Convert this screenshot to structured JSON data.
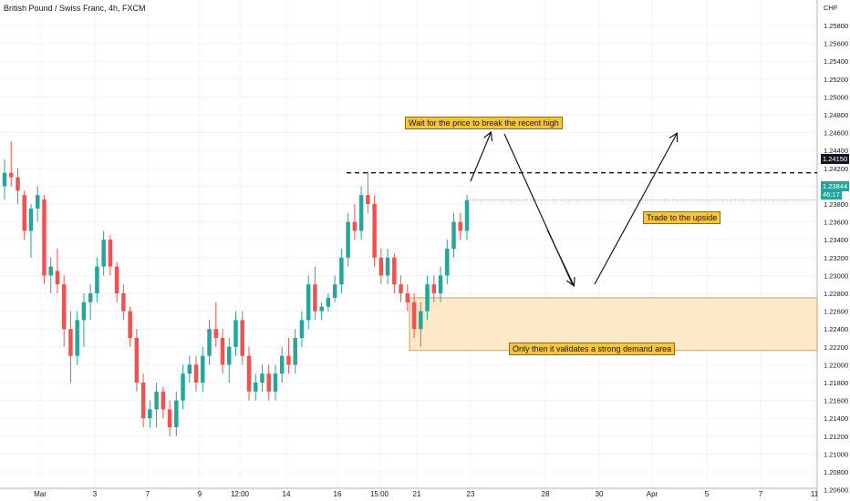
{
  "chart_data": {
    "type": "candlestick",
    "title": "British Pound / Swiss Franc, 4h, FXCM",
    "currency_label": "CHF",
    "y_ticks": [
      "1.25800",
      "1.25600",
      "1.25400",
      "1.25200",
      "1.25000",
      "1.24800",
      "1.24600",
      "1.24400",
      "1.24200",
      "1.24000",
      "1.23800",
      "1.23600",
      "1.23400",
      "1.23200",
      "1.23000",
      "1.22800",
      "1.22600",
      "1.22400",
      "1.22200",
      "1.22000",
      "1.21800",
      "1.21600",
      "1.21400",
      "1.21200",
      "1.21000",
      "1.20800",
      "1.20600"
    ],
    "x_ticks": [
      "Mar",
      "3",
      "7",
      "9",
      "12:00",
      "14",
      "16",
      "15:00",
      "21",
      "23",
      "28",
      "30",
      "Apr",
      "5",
      "7",
      "11"
    ],
    "ylim": [
      1.2054,
      1.2592
    ],
    "grid": true,
    "resistance_level": "1.24150",
    "current_price": "1.23844",
    "countdown": "46:17",
    "candles": [
      [
        1.24,
        1.243,
        1.2385,
        1.2415
      ],
      [
        1.2415,
        1.245,
        1.24,
        1.241
      ],
      [
        1.241,
        1.242,
        1.238,
        1.2395
      ],
      [
        1.239,
        1.2395,
        1.234,
        1.235
      ],
      [
        1.235,
        1.238,
        1.232,
        1.2375
      ],
      [
        1.2375,
        1.24,
        1.236,
        1.239
      ],
      [
        1.2385,
        1.239,
        1.229,
        1.23
      ],
      [
        1.23,
        1.232,
        1.228,
        1.231
      ],
      [
        1.2305,
        1.233,
        1.228,
        1.229
      ],
      [
        1.229,
        1.23,
        1.222,
        1.224
      ],
      [
        1.224,
        1.226,
        1.218,
        1.221
      ],
      [
        1.221,
        1.226,
        1.22,
        1.225
      ],
      [
        1.225,
        1.228,
        1.222,
        1.227
      ],
      [
        1.227,
        1.229,
        1.225,
        1.228
      ],
      [
        1.228,
        1.232,
        1.227,
        1.231
      ],
      [
        1.231,
        1.235,
        1.23,
        1.234
      ],
      [
        1.234,
        1.2345,
        1.23,
        1.231
      ],
      [
        1.231,
        1.2315,
        1.227,
        1.228
      ],
      [
        1.228,
        1.229,
        1.225,
        1.226
      ],
      [
        1.226,
        1.2265,
        1.222,
        1.223
      ],
      [
        1.223,
        1.224,
        1.217,
        1.218
      ],
      [
        1.218,
        1.219,
        1.213,
        1.214
      ],
      [
        1.214,
        1.216,
        1.213,
        1.215
      ],
      [
        1.215,
        1.218,
        1.213,
        1.217
      ],
      [
        1.217,
        1.2175,
        1.214,
        1.215
      ],
      [
        1.215,
        1.216,
        1.212,
        1.213
      ],
      [
        1.213,
        1.217,
        1.212,
        1.216
      ],
      [
        1.216,
        1.22,
        1.215,
        1.219
      ],
      [
        1.219,
        1.221,
        1.218,
        1.22
      ],
      [
        1.22,
        1.221,
        1.217,
        1.218
      ],
      [
        1.218,
        1.222,
        1.217,
        1.221
      ],
      [
        1.221,
        1.225,
        1.22,
        1.224
      ],
      [
        1.224,
        1.227,
        1.222,
        1.223
      ],
      [
        1.223,
        1.224,
        1.219,
        1.22
      ],
      [
        1.22,
        1.223,
        1.218,
        1.222
      ],
      [
        1.222,
        1.226,
        1.221,
        1.225
      ],
      [
        1.225,
        1.226,
        1.22,
        1.221
      ],
      [
        1.221,
        1.222,
        1.216,
        1.217
      ],
      [
        1.217,
        1.219,
        1.216,
        1.218
      ],
      [
        1.218,
        1.22,
        1.217,
        1.219
      ],
      [
        1.219,
        1.22,
        1.216,
        1.217
      ],
      [
        1.217,
        1.22,
        1.216,
        1.219
      ],
      [
        1.219,
        1.222,
        1.218,
        1.221
      ],
      [
        1.221,
        1.223,
        1.219,
        1.22
      ],
      [
        1.22,
        1.224,
        1.219,
        1.223
      ],
      [
        1.223,
        1.226,
        1.222,
        1.225
      ],
      [
        1.225,
        1.23,
        1.224,
        1.229
      ],
      [
        1.229,
        1.231,
        1.225,
        1.226
      ],
      [
        1.226,
        1.227,
        1.225,
        1.2265
      ],
      [
        1.2265,
        1.228,
        1.226,
        1.2275
      ],
      [
        1.2275,
        1.23,
        1.227,
        1.229
      ],
      [
        1.229,
        1.233,
        1.228,
        1.232
      ],
      [
        1.232,
        1.237,
        1.231,
        1.236
      ],
      [
        1.236,
        1.238,
        1.234,
        1.235
      ],
      [
        1.235,
        1.24,
        1.234,
        1.239
      ],
      [
        1.239,
        1.2416,
        1.237,
        1.238
      ],
      [
        1.238,
        1.239,
        1.231,
        1.232
      ],
      [
        1.232,
        1.233,
        1.229,
        1.23
      ],
      [
        1.23,
        1.233,
        1.229,
        1.232
      ],
      [
        1.232,
        1.2325,
        1.228,
        1.229
      ],
      [
        1.229,
        1.23,
        1.227,
        1.228
      ],
      [
        1.228,
        1.229,
        1.226,
        1.227
      ],
      [
        1.227,
        1.228,
        1.223,
        1.224
      ],
      [
        1.224,
        1.227,
        1.222,
        1.226
      ],
      [
        1.226,
        1.23,
        1.225,
        1.229
      ],
      [
        1.229,
        1.23,
        1.227,
        1.228
      ],
      [
        1.228,
        1.231,
        1.227,
        1.23
      ],
      [
        1.23,
        1.234,
        1.229,
        1.233
      ],
      [
        1.233,
        1.237,
        1.232,
        1.236
      ],
      [
        1.236,
        1.237,
        1.234,
        1.235
      ],
      [
        1.235,
        1.239,
        1.234,
        1.2384
      ]
    ]
  },
  "annotations": {
    "top_note": "Wait for the price to break the recent high",
    "right_note": "Trade to the upside",
    "bottom_note": "Only then it validates a strong demand area"
  },
  "zone": {
    "top": 1.2275,
    "bottom": 1.2216
  },
  "colors": {
    "up": "#26a69a",
    "down": "#ef5350",
    "zone_fill": "#fde8c8",
    "annotation_bg": "#f5c542",
    "grid": "#f0f3fa"
  }
}
